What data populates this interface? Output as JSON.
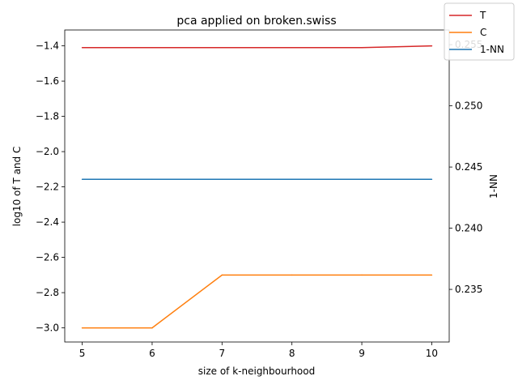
{
  "chart_data": {
    "type": "line",
    "title": "pca applied on broken.swiss",
    "xlabel": "size of k-neighbourhood",
    "ylabel": "log10 of T and C",
    "y2label": "1-NN",
    "x": [
      5,
      6,
      7,
      8,
      9,
      10
    ],
    "xticks": [
      "5",
      "6",
      "7",
      "8",
      "9",
      "10"
    ],
    "xlim": [
      4.75,
      10.25
    ],
    "ylim": [
      -3.08,
      -1.31
    ],
    "yticks": [
      "−3.0",
      "−2.8",
      "−2.6",
      "−2.4",
      "−2.2",
      "−2.0",
      "−1.8",
      "−1.6",
      "−1.4"
    ],
    "ytick_values": [
      -3.0,
      -2.8,
      -2.6,
      -2.4,
      -2.2,
      -2.0,
      -1.8,
      -1.6,
      -1.4
    ],
    "y2lim": [
      0.2307,
      0.2562
    ],
    "y2ticks": [
      "0.235",
      "0.240",
      "0.245",
      "0.250",
      "0.255"
    ],
    "y2tick_values": [
      0.235,
      0.24,
      0.245,
      0.25,
      0.255
    ],
    "grid": false,
    "legend_position": "top-right",
    "series": [
      {
        "name": "T",
        "axis": "left",
        "color": "#d62728",
        "values": [
          -1.41,
          -1.41,
          -1.41,
          -1.41,
          -1.41,
          -1.4
        ]
      },
      {
        "name": "C",
        "axis": "left",
        "color": "#ff7f0e",
        "values": [
          -3.0,
          -3.0,
          -2.7,
          -2.7,
          -2.7,
          -2.7
        ]
      },
      {
        "name": "1-NN",
        "axis": "right",
        "color": "#1f77b4",
        "values": [
          0.244,
          0.244,
          0.244,
          0.244,
          0.244,
          0.244
        ]
      }
    ]
  }
}
